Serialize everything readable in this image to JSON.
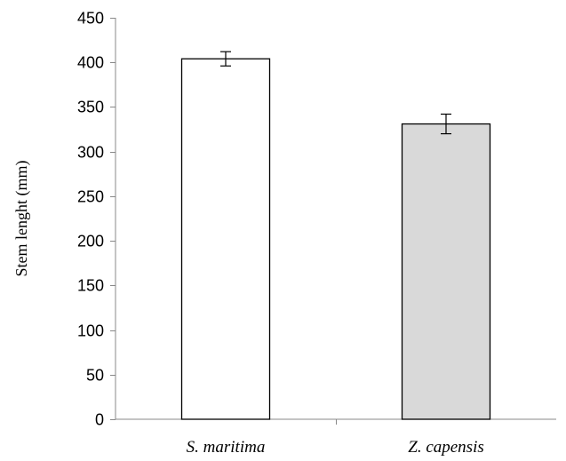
{
  "chart_data": {
    "type": "bar",
    "title": "",
    "xlabel": "",
    "ylabel": "Stem lenght (mm)",
    "ylim": [
      0,
      450
    ],
    "yticks": [
      0,
      50,
      100,
      150,
      200,
      250,
      300,
      350,
      400,
      450
    ],
    "grid": false,
    "categories": [
      "S. maritima",
      "Z. capensis"
    ],
    "values": [
      404,
      331
    ],
    "errors": [
      8,
      11
    ],
    "colors": {
      "bar_fills": [
        "#ffffff",
        "#d9d9d9"
      ],
      "bar_stroke": "#000000",
      "axis": "#888888"
    }
  }
}
